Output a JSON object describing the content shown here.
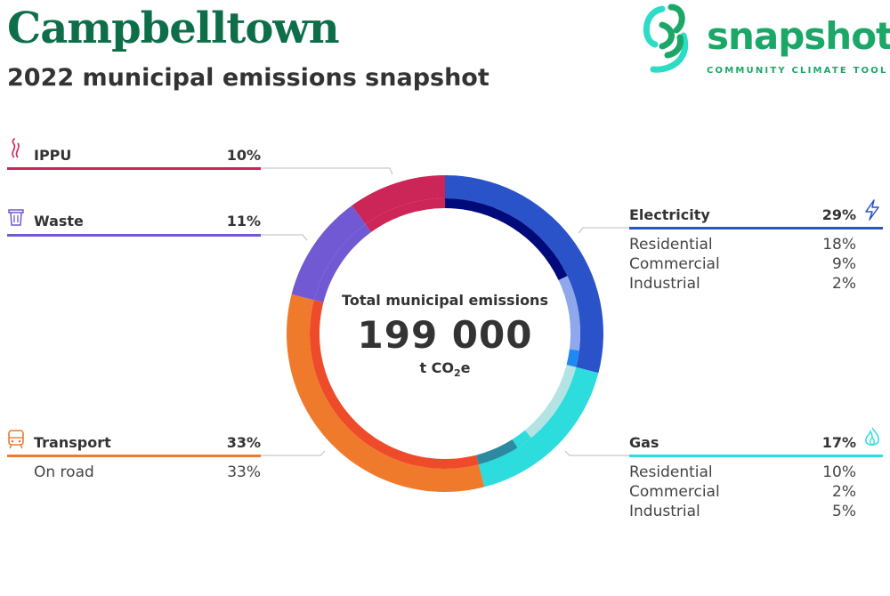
{
  "header": {
    "title": "Campbelltown",
    "subtitle": "2022 municipal emissions snapshot"
  },
  "logo": {
    "word": "snapshot",
    "tagline": "COMMUNITY CLIMATE TOOL",
    "color": "#1ba767"
  },
  "center": {
    "label": "Total municipal emissions",
    "value": "199 000",
    "unit_prefix": "t CO",
    "unit_sub": "2",
    "unit_suffix": "e"
  },
  "chart_data": {
    "type": "pie",
    "style": "donut",
    "total": 199000,
    "unit": "t CO2e",
    "categories": [
      {
        "key": "electricity",
        "label": "Electricity",
        "value_label": "29%",
        "value": 29,
        "color": "#2a52c9",
        "icon": "lightning-icon",
        "subcategories": [
          {
            "label": "Residential",
            "value_label": "18%",
            "value": 18,
            "color": "#000a7a"
          },
          {
            "label": "Commercial",
            "value_label": "9%",
            "value": 9,
            "color": "#8fa8ec"
          },
          {
            "label": "Industrial",
            "value_label": "2%",
            "value": 2,
            "color": "#1e88f5"
          }
        ]
      },
      {
        "key": "gas",
        "label": "Gas",
        "value_label": "17%",
        "value": 17,
        "color": "#2ddcdc",
        "icon": "flame-icon",
        "subcategories": [
          {
            "label": "Residential",
            "value_label": "10%",
            "value": 10,
            "color": "#b4e3e3"
          },
          {
            "label": "Commercial",
            "value_label": "2%",
            "value": 2,
            "color": "#2ddcdc"
          },
          {
            "label": "Industrial",
            "value_label": "5%",
            "value": 5,
            "color": "#2b8aa0"
          }
        ]
      },
      {
        "key": "transport",
        "label": "Transport",
        "value_label": "33%",
        "value": 33,
        "color": "#f07a2c",
        "icon": "train-icon",
        "subcategories": [
          {
            "label": "On road",
            "value_label": "33%",
            "value": 33,
            "color": "#ee4b2a"
          }
        ]
      },
      {
        "key": "waste",
        "label": "Waste",
        "value_label": "11%",
        "value": 11,
        "color": "#7159d3",
        "icon": "trash-icon",
        "subcategories": []
      },
      {
        "key": "ippu",
        "label": "IPPU",
        "value_label": "10%",
        "value": 10,
        "color": "#cc2557",
        "icon": "smoke-icon",
        "subcategories": []
      }
    ]
  }
}
